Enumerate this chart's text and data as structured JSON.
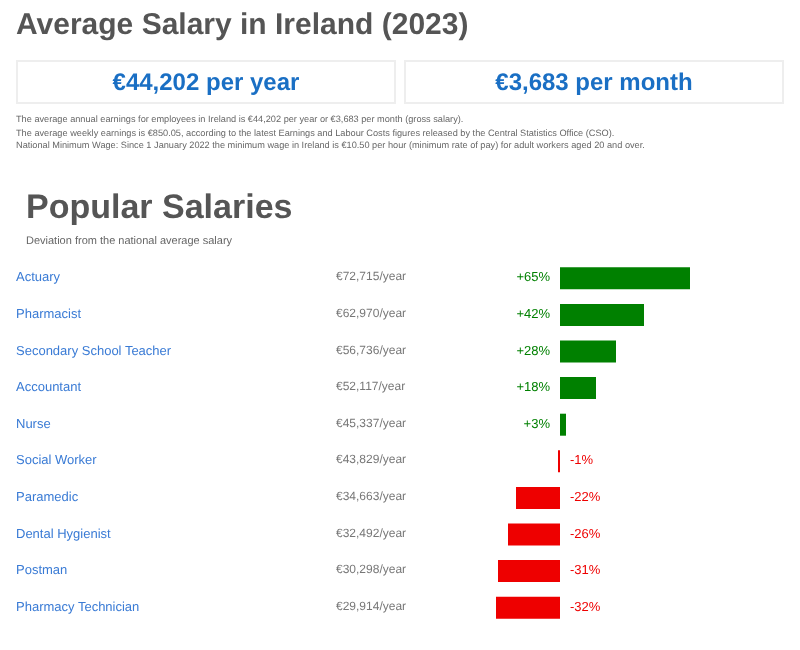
{
  "chart_data": {
    "type": "bar",
    "orientation": "horizontal",
    "title": "Popular Salaries",
    "subtitle": "Deviation from the national average salary",
    "categories": [
      "Actuary",
      "Pharmacist",
      "Secondary School Teacher",
      "Accountant",
      "Nurse",
      "Social Worker",
      "Paramedic",
      "Dental Hygienist",
      "Postman",
      "Pharmacy Technician"
    ],
    "values": [
      65,
      42,
      28,
      18,
      3,
      -1,
      -22,
      -26,
      -31,
      -32
    ],
    "value_labels": [
      "+65%",
      "+42%",
      "+28%",
      "+18%",
      "+3%",
      "-1%",
      "-22%",
      "-26%",
      "-31%",
      "-32%"
    ],
    "colors": [
      "#008000",
      "#008000",
      "#008000",
      "#008000",
      "#008000",
      "#ee0000",
      "#ee0000",
      "#ee0000",
      "#ee0000",
      "#ee0000"
    ],
    "annotations": [
      "Average Salary in Ireland (2023)",
      "€44,202 per year",
      "€3,683 per month",
      "The average annual earnings for employees in Ireland is €44,202 per year or €3,683 per month (gross salary).",
      "The average weekly earnings is €850.05, according to the latest Earnings and Labour Costs figures released by the Central Statistics Office (CSO).",
      "National Minimum Wage: Since 1 January 2022 the minimum wage in Ireland is €10.50 per hour (minimum rate of pay) for adult workers aged 20 and over.",
      "€72,715/year",
      "€62,970/year",
      "€56,736/year",
      "€52,117/year",
      "€45,337/year",
      "€43,829/year",
      "€34,663/year",
      "€32,492/year",
      "€30,298/year",
      "€29,914/year"
    ]
  }
}
